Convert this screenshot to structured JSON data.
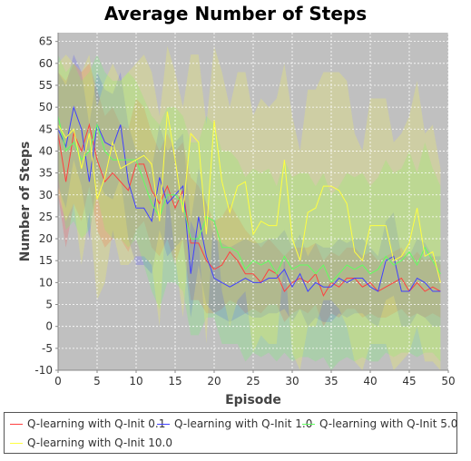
{
  "chart_data": {
    "type": "line",
    "title": "Average Number of Steps",
    "xlabel": "Episode",
    "ylabel": "Number of Steps",
    "xlim": [
      0,
      50
    ],
    "ylim": [
      -10,
      67
    ],
    "xticks": [
      0,
      5,
      10,
      15,
      20,
      25,
      30,
      35,
      40,
      45,
      50
    ],
    "yticks": [
      -10,
      -5,
      0,
      5,
      10,
      15,
      20,
      25,
      30,
      35,
      40,
      45,
      50,
      55,
      60,
      65
    ],
    "grid": true,
    "legend_position": "bottom",
    "plot_background": "#c0c0c0",
    "series": [
      {
        "name": "Q-learning with Q-Init 0.1",
        "color": "#ff4040",
        "values": [
          44,
          33,
          44,
          40,
          46,
          38,
          33,
          35,
          33,
          31,
          37,
          37,
          31,
          28,
          32,
          27,
          31,
          19,
          19,
          15,
          13,
          14,
          17,
          15,
          12,
          12,
          10,
          13,
          12,
          8,
          10,
          11,
          10,
          12,
          7,
          10,
          9,
          11,
          11,
          9,
          10,
          8,
          9,
          10,
          11,
          8,
          10,
          8,
          9,
          8
        ],
        "upper": [
          58,
          56,
          60,
          58,
          60,
          54,
          48,
          50,
          46,
          45,
          52,
          50,
          44,
          40,
          44,
          40,
          42,
          34,
          32,
          28,
          24,
          25,
          28,
          25,
          22,
          20,
          18,
          20,
          18,
          16,
          18,
          18,
          18,
          19,
          15,
          17,
          16,
          18,
          18,
          16,
          17,
          15,
          16,
          17,
          18,
          15,
          17,
          15,
          16,
          14
        ],
        "lower": [
          30,
          18,
          28,
          24,
          32,
          22,
          18,
          20,
          20,
          17,
          22,
          24,
          18,
          16,
          20,
          14,
          20,
          6,
          6,
          3,
          3,
          4,
          6,
          5,
          3,
          4,
          3,
          5,
          5,
          1,
          3,
          4,
          3,
          5,
          0,
          3,
          2,
          4,
          4,
          2,
          3,
          2,
          2,
          3,
          4,
          2,
          3,
          2,
          3,
          2
        ]
      },
      {
        "name": "Q-learning with Q-Init 1.0",
        "color": "#4040ff",
        "values": [
          45,
          41,
          50,
          45,
          33,
          46,
          42,
          41,
          46,
          33,
          27,
          27,
          24,
          34,
          28,
          30,
          32,
          12,
          25,
          16,
          11,
          10,
          9,
          10,
          11,
          10,
          10,
          11,
          11,
          13,
          9,
          12,
          8,
          10,
          9,
          9,
          11,
          10,
          11,
          11,
          9,
          8,
          15,
          16,
          8,
          8,
          11,
          10,
          8,
          8
        ],
        "upper": [
          58,
          55,
          62,
          58,
          46,
          58,
          54,
          53,
          58,
          46,
          40,
          40,
          36,
          46,
          40,
          42,
          44,
          24,
          36,
          28,
          20,
          19,
          18,
          19,
          20,
          19,
          19,
          20,
          20,
          22,
          18,
          21,
          16,
          19,
          18,
          18,
          20,
          19,
          20,
          20,
          18,
          16,
          24,
          26,
          16,
          16,
          20,
          19,
          16,
          16
        ],
        "lower": [
          32,
          27,
          38,
          32,
          20,
          34,
          30,
          29,
          34,
          20,
          14,
          14,
          12,
          22,
          16,
          18,
          20,
          2,
          14,
          5,
          3,
          2,
          1,
          2,
          3,
          2,
          2,
          3,
          3,
          4,
          1,
          4,
          0,
          2,
          1,
          1,
          3,
          2,
          3,
          3,
          1,
          0,
          6,
          7,
          0,
          0,
          3,
          2,
          0,
          0
        ]
      },
      {
        "name": "Q-learning with Q-Init 5.0",
        "color": "#60ff60",
        "values": [
          48,
          40,
          42,
          38,
          40,
          46,
          40,
          38,
          38,
          38,
          38,
          33,
          28,
          25,
          30,
          30,
          28,
          20,
          20,
          25,
          24,
          18,
          18,
          17,
          13,
          15,
          14,
          15,
          12,
          16,
          13,
          14,
          14,
          12,
          14,
          10,
          12,
          14,
          13,
          14,
          12,
          13,
          16,
          14,
          15,
          17,
          14,
          18,
          15,
          12
        ],
        "upper": [
          62,
          58,
          60,
          56,
          58,
          62,
          58,
          56,
          56,
          58,
          56,
          52,
          48,
          46,
          50,
          50,
          48,
          42,
          42,
          48,
          46,
          40,
          40,
          38,
          34,
          36,
          35,
          36,
          32,
          38,
          34,
          35,
          35,
          32,
          35,
          30,
          32,
          35,
          34,
          35,
          32,
          34,
          38,
          35,
          36,
          40,
          35,
          42,
          36,
          32
        ],
        "lower": [
          34,
          22,
          24,
          20,
          22,
          30,
          22,
          20,
          20,
          18,
          20,
          14,
          8,
          4,
          10,
          10,
          8,
          -2,
          -2,
          2,
          2,
          -4,
          -4,
          -4,
          -8,
          -6,
          -7,
          -6,
          -8,
          -6,
          -8,
          -7,
          -7,
          -8,
          -7,
          -10,
          -8,
          -7,
          -8,
          -7,
          -8,
          -8,
          -6,
          -7,
          -6,
          -6,
          -7,
          -6,
          -6,
          -8
        ]
      },
      {
        "name": "Q-learning with Q-Init 10.0",
        "color": "#ffff40",
        "values": [
          46,
          43,
          45,
          36,
          44,
          29,
          34,
          42,
          36,
          37,
          38,
          39,
          37,
          24,
          49,
          38,
          26,
          44,
          42,
          21,
          47,
          33,
          26,
          32,
          33,
          21,
          24,
          23,
          23,
          38,
          20,
          15,
          26,
          27,
          32,
          32,
          31,
          28,
          17,
          15,
          23,
          23,
          23,
          15,
          16,
          19,
          27,
          16,
          17,
          10
        ],
        "upper": [
          60,
          62,
          60,
          58,
          62,
          50,
          56,
          60,
          56,
          58,
          60,
          62,
          58,
          48,
          64,
          58,
          50,
          62,
          62,
          46,
          64,
          58,
          50,
          58,
          58,
          48,
          52,
          50,
          52,
          60,
          48,
          40,
          54,
          54,
          58,
          58,
          58,
          56,
          44,
          40,
          52,
          52,
          52,
          42,
          44,
          48,
          56,
          44,
          46,
          36
        ],
        "lower": [
          30,
          24,
          28,
          14,
          26,
          6,
          10,
          22,
          14,
          14,
          16,
          16,
          14,
          0,
          32,
          16,
          2,
          24,
          20,
          -4,
          28,
          8,
          0,
          6,
          8,
          -6,
          -2,
          -4,
          -4,
          16,
          -6,
          -10,
          0,
          0,
          6,
          6,
          4,
          0,
          -8,
          -10,
          -4,
          -4,
          -4,
          -10,
          -8,
          -6,
          0,
          -8,
          -8,
          -10
        ]
      }
    ]
  }
}
